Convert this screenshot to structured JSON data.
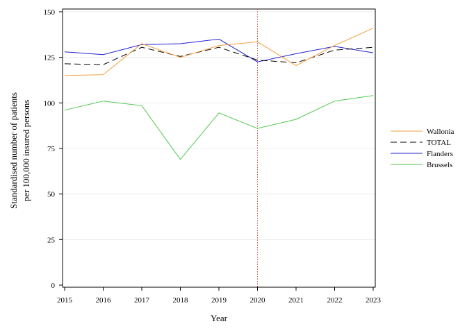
{
  "chart_data": {
    "type": "line",
    "title": "",
    "xlabel": "Year",
    "ylabel_lines": [
      "Standardised number of patients",
      "per 100,000 insured persons"
    ],
    "x": [
      2015,
      2016,
      2017,
      2018,
      2019,
      2020,
      2021,
      2022,
      2023
    ],
    "xlim": [
      2015,
      2023
    ],
    "ylim": [
      0,
      150
    ],
    "yticks": [
      0,
      25,
      50,
      75,
      100,
      125,
      150
    ],
    "grid": "horizontal",
    "legend_position": "right",
    "reference_line": {
      "x": 2020,
      "color": "#c0504d",
      "style": "dotted"
    },
    "series": [
      {
        "name": "Wallonia",
        "color": "#f5a040",
        "dash": "solid",
        "values": [
          115,
          115.5,
          132.5,
          125,
          131.5,
          133.5,
          120.5,
          131.5,
          141
        ]
      },
      {
        "name": "TOTAL",
        "color": "#000000",
        "dash": "dashed",
        "values": [
          121.5,
          121,
          130.5,
          125.5,
          130.5,
          123.5,
          122,
          129,
          130.5
        ]
      },
      {
        "name": "Flanders",
        "color": "#2020d0",
        "dash": "solid",
        "values": [
          128,
          126.5,
          132,
          132.5,
          135,
          122.5,
          127,
          131,
          127.5
        ]
      },
      {
        "name": "Brussels",
        "color": "#50c850",
        "dash": "solid",
        "values": [
          96,
          101,
          98.5,
          69,
          94.5,
          86,
          91,
          101,
          104
        ]
      }
    ]
  }
}
